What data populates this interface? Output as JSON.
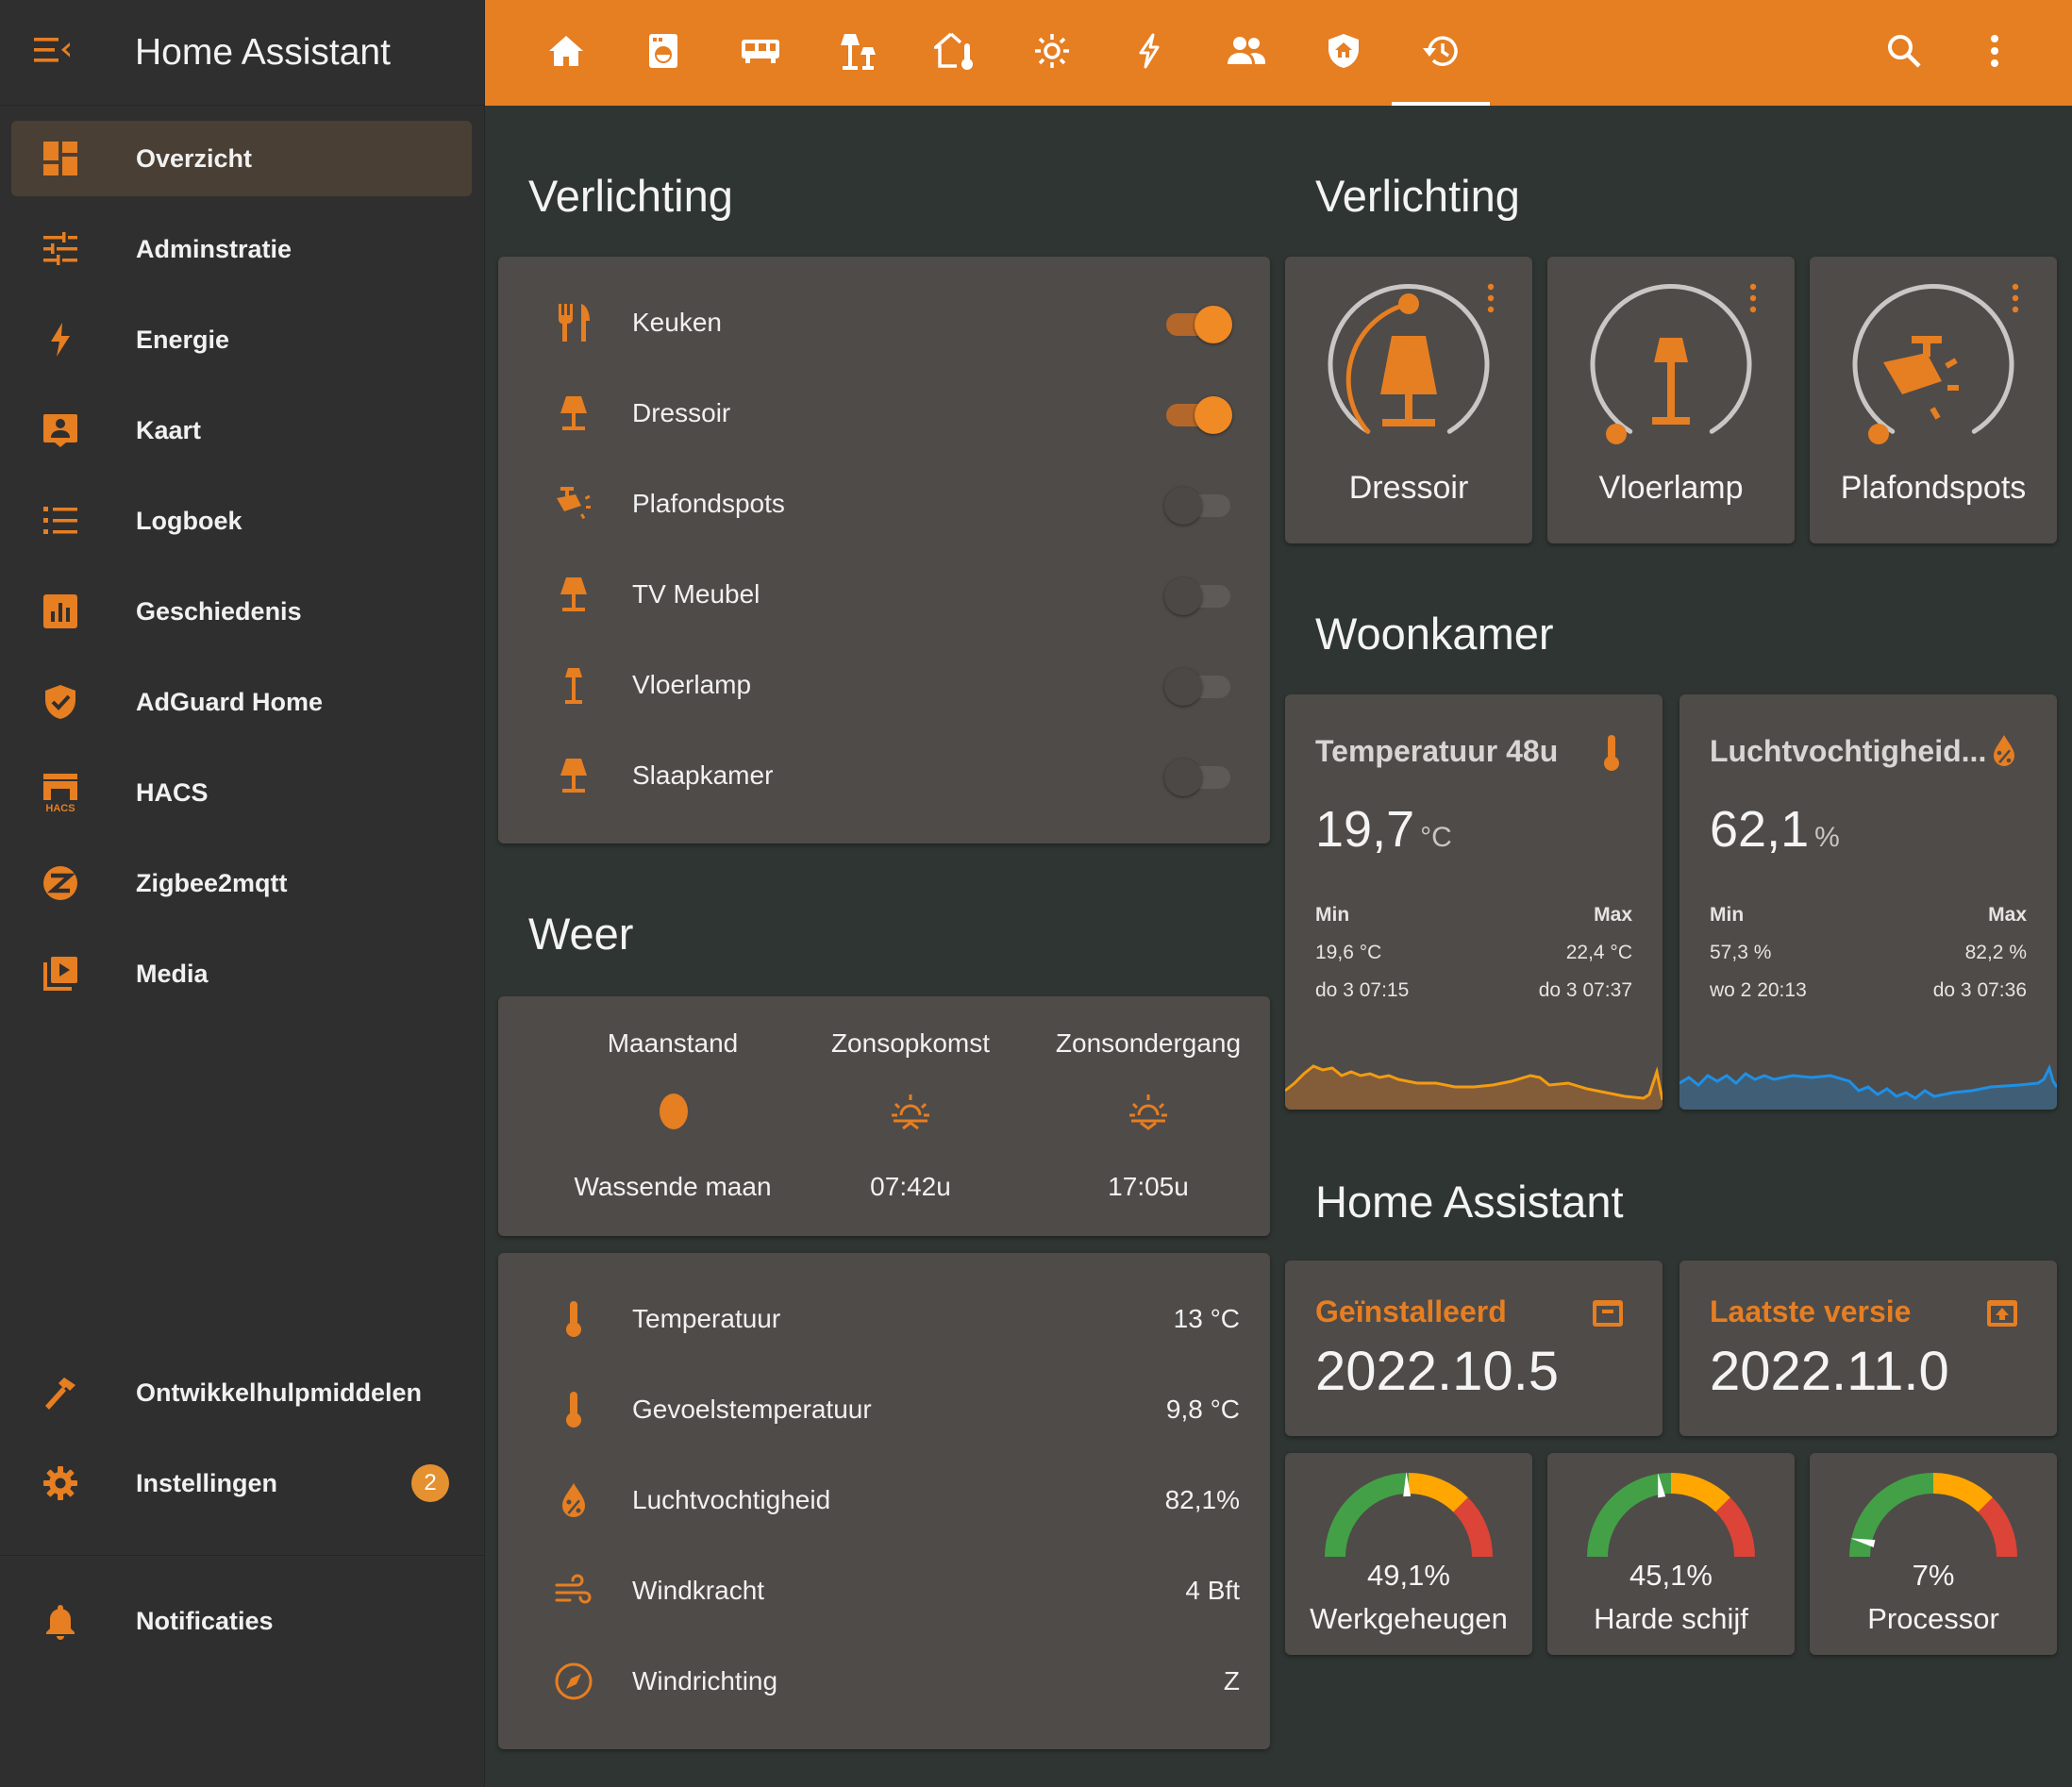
{
  "app": {
    "title": "Home Assistant"
  },
  "sidebar": {
    "items": [
      {
        "label": "Overzicht",
        "icon": "dashboard-icon"
      },
      {
        "label": "Adminstratie",
        "icon": "tune-icon"
      },
      {
        "label": "Energie",
        "icon": "lightning-icon"
      },
      {
        "label": "Kaart",
        "icon": "map-account-icon"
      },
      {
        "label": "Logboek",
        "icon": "list-icon"
      },
      {
        "label": "Geschiedenis",
        "icon": "chart-box-icon"
      },
      {
        "label": "AdGuard Home",
        "icon": "shield-check-icon"
      },
      {
        "label": "HACS",
        "icon": "hacs-icon",
        "icon_text": "HACS"
      },
      {
        "label": "Zigbee2mqtt",
        "icon": "zigbee-icon"
      },
      {
        "label": "Media",
        "icon": "media-play-icon"
      }
    ],
    "bottom": [
      {
        "label": "Ontwikkelhulpmiddelen",
        "icon": "hammer-icon"
      },
      {
        "label": "Instellingen",
        "icon": "gear-icon",
        "badge": "2"
      }
    ],
    "notifications": {
      "label": "Notificaties",
      "icon": "bell-icon"
    }
  },
  "topbar": {
    "tabs": [
      "home-icon",
      "washing-machine-icon",
      "kitchen-appliance-icon",
      "floor-lamps-icon",
      "home-thermometer-icon",
      "sun-icon",
      "lightning-icon",
      "people-icon",
      "shield-home-icon",
      "history-icon"
    ],
    "active_tab": 9,
    "actions": [
      "search-icon",
      "more-vertical-icon"
    ]
  },
  "left": {
    "verlichting_title": "Verlichting",
    "lights": [
      {
        "name": "Keuken",
        "icon": "silverware-icon",
        "on": true
      },
      {
        "name": "Dressoir",
        "icon": "table-lamp-icon",
        "on": true
      },
      {
        "name": "Plafondspots",
        "icon": "spotlight-icon",
        "on": false
      },
      {
        "name": "TV Meubel",
        "icon": "table-lamp-icon",
        "on": false
      },
      {
        "name": "Vloerlamp",
        "icon": "floor-lamp-icon",
        "on": false
      },
      {
        "name": "Slaapkamer",
        "icon": "table-lamp-icon",
        "on": false
      }
    ],
    "weer_title": "Weer",
    "weer": [
      {
        "label": "Maanstand",
        "value": "Wassende maan",
        "icon": "moon-icon"
      },
      {
        "label": "Zonsopkomst",
        "value": "07:42u",
        "icon": "sunrise-icon"
      },
      {
        "label": "Zonsondergang",
        "value": "17:05u",
        "icon": "sunset-icon"
      }
    ],
    "weather_rows": [
      {
        "name": "Temperatuur",
        "value": "13 °C",
        "icon": "thermometer-icon"
      },
      {
        "name": "Gevoelstemperatuur",
        "value": "9,8 °C",
        "icon": "thermometer-icon"
      },
      {
        "name": "Luchtvochtigheid",
        "value": "82,1%",
        "icon": "water-percent-icon"
      },
      {
        "name": "Windkracht",
        "value": "4 Bft",
        "icon": "wind-icon"
      },
      {
        "name": "Windrichting",
        "value": "Z",
        "icon": "compass-icon"
      }
    ]
  },
  "right": {
    "verlichting_title": "Verlichting",
    "light_tiles": [
      {
        "name": "Dressoir",
        "icon": "table-lamp-icon",
        "brightness": 0.5
      },
      {
        "name": "Vloerlamp",
        "icon": "floor-lamp-icon",
        "brightness": 0
      },
      {
        "name": "Plafondspots",
        "icon": "spotlight-icon",
        "brightness": 0
      }
    ],
    "woonkamer_title": "Woonkamer",
    "sensors": [
      {
        "name": "Temperatuur 48u",
        "value": "19,7",
        "unit": "°C",
        "icon": "thermometer-icon",
        "min_label": "Min",
        "min_value": "19,6 °C",
        "min_time": "do 3 07:15",
        "max_label": "Max",
        "max_value": "22,4 °C",
        "max_time": "do 3 07:37",
        "color": "#f39c12"
      },
      {
        "name": "Luchtvochtigheid...",
        "value": "62,1",
        "unit": "%",
        "icon": "water-percent-icon",
        "min_label": "Min",
        "min_value": "57,3 %",
        "min_time": "wo 2 20:13",
        "max_label": "Max",
        "max_value": "82,2 %",
        "max_time": "do 3 07:36",
        "color": "#1e90e6"
      }
    ],
    "ha_title": "Home Assistant",
    "versions": [
      {
        "label": "Geïnstalleerd",
        "value": "2022.10.5",
        "icon": "package-icon"
      },
      {
        "label": "Laatste versie",
        "value": "2022.11.0",
        "icon": "package-up-icon"
      }
    ],
    "gauges": [
      {
        "name": "Werkgeheugen",
        "value": "49,1%",
        "percent": 49.1
      },
      {
        "name": "Harde schijf",
        "value": "45,1%",
        "percent": 45.1
      },
      {
        "name": "Processor",
        "value": "7%",
        "percent": 7
      }
    ]
  },
  "colors": {
    "accent": "#e67e22",
    "card": "#4f4b48",
    "background": "#2f3532",
    "sidebar": "#2f2f2f",
    "active_item": "#4a3f35",
    "gauge_green": "#43a047",
    "gauge_yellow": "#ffa600",
    "gauge_red": "#db4437"
  }
}
